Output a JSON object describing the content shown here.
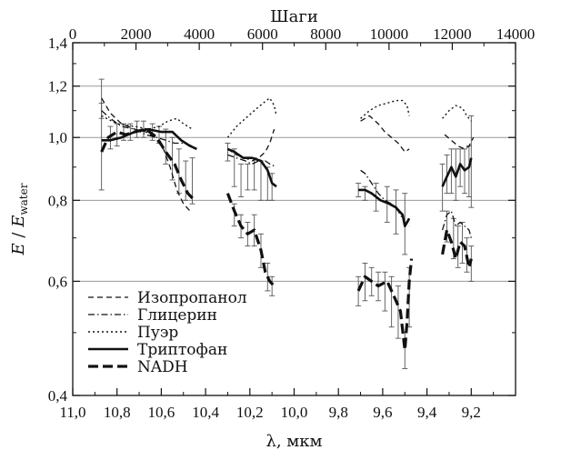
{
  "chart_data": {
    "type": "line",
    "title": "",
    "top_axis": {
      "label": "Шаги",
      "ticks": [
        0,
        2000,
        4000,
        6000,
        8000,
        10000,
        12000,
        14000
      ],
      "tick_labels": [
        "0",
        "2000",
        "4000",
        "6000",
        "8000",
        "10000",
        "12000",
        "14000"
      ],
      "range": [
        0,
        14000
      ]
    },
    "x_axis": {
      "label": "λ, мкм",
      "reversed": true,
      "range": [
        11.0,
        9.0
      ],
      "ticks": [
        11.0,
        10.8,
        10.6,
        10.4,
        10.2,
        10.0,
        9.8,
        9.6,
        9.4,
        9.2
      ],
      "tick_labels": [
        "11,0",
        "10,8",
        "10,6",
        "10,4",
        "10,2",
        "10,0",
        "9,8",
        "9,6",
        "9,4",
        "9,2"
      ]
    },
    "y_axis": {
      "label_main": "E",
      "label_sep": " / ",
      "label_den": "E",
      "label_sub": "water",
      "scale": "log",
      "range": [
        0.4,
        1.4
      ],
      "ticks": [
        0.4,
        0.6,
        0.8,
        1.0,
        1.2,
        1.4
      ],
      "tick_labels": [
        "0,4",
        "0,6",
        "0,8",
        "1,0",
        "1,2",
        "1,4"
      ],
      "gridlines": [
        0.6,
        0.8,
        1.0,
        1.2
      ]
    },
    "legend_position": "bottom-left",
    "series": [
      {
        "name": "Изопропанол",
        "style": "dashed",
        "segments": [
          [
            [
              10.87,
              1.15
            ],
            [
              10.83,
              1.09
            ],
            [
              10.78,
              1.05
            ],
            [
              10.72,
              1.03
            ],
            [
              10.67,
              1.02
            ],
            [
              10.63,
              1.0
            ],
            [
              10.59,
              0.96
            ],
            [
              10.56,
              0.9
            ],
            [
              10.53,
              0.83
            ],
            [
              10.5,
              0.79
            ],
            [
              10.47,
              0.77
            ]
          ],
          [
            [
              10.3,
              0.96
            ],
            [
              10.26,
              0.94
            ],
            [
              10.22,
              0.93
            ],
            [
              10.19,
              0.92
            ],
            [
              10.16,
              0.93
            ],
            [
              10.13,
              0.95
            ],
            [
              10.11,
              0.98
            ],
            [
              10.09,
              1.03
            ]
          ],
          [
            [
              9.7,
              1.06
            ],
            [
              9.66,
              1.08
            ],
            [
              9.62,
              1.05
            ],
            [
              9.59,
              1.02
            ],
            [
              9.56,
              1.0
            ],
            [
              9.53,
              0.98
            ],
            [
              9.5,
              0.95
            ],
            [
              9.48,
              0.96
            ]
          ],
          [
            [
              9.32,
              1.01
            ],
            [
              9.29,
              0.99
            ],
            [
              9.26,
              0.97
            ],
            [
              9.23,
              0.96
            ],
            [
              9.21,
              0.97
            ],
            [
              9.19,
              1.0
            ]
          ]
        ]
      },
      {
        "name": "Глицерин",
        "style": "dashdot",
        "segments": [
          [
            [
              10.87,
              1.1
            ],
            [
              10.83,
              1.07
            ],
            [
              10.78,
              1.04
            ],
            [
              10.72,
              1.03
            ],
            [
              10.67,
              1.01
            ],
            [
              10.62,
              1.0
            ],
            [
              10.58,
              0.99
            ],
            [
              10.54,
              0.98
            ],
            [
              10.5,
              0.98
            ],
            [
              10.46,
              0.97
            ]
          ],
          [
            [
              10.3,
              0.94
            ],
            [
              10.26,
              0.93
            ],
            [
              10.22,
              0.92
            ],
            [
              10.19,
              0.91
            ],
            [
              10.16,
              0.92
            ],
            [
              10.13,
              0.92
            ],
            [
              10.11,
              0.91
            ],
            [
              10.08,
              0.9
            ]
          ],
          [
            [
              9.7,
              0.89
            ],
            [
              9.68,
              0.88
            ],
            [
              9.65,
              0.85
            ],
            [
              9.62,
              0.82
            ],
            [
              9.59,
              0.8
            ],
            [
              9.56,
              0.79
            ],
            [
              9.53,
              0.77
            ],
            [
              9.5,
              0.74
            ],
            [
              9.48,
              0.73
            ]
          ],
          [
            [
              9.33,
              0.72
            ],
            [
              9.31,
              0.76
            ],
            [
              9.29,
              0.77
            ],
            [
              9.27,
              0.73
            ],
            [
              9.25,
              0.74
            ],
            [
              9.23,
              0.73
            ],
            [
              9.21,
              0.72
            ],
            [
              9.2,
              0.7
            ]
          ]
        ]
      },
      {
        "name": "Пуэр",
        "style": "dotted",
        "segments": [
          [
            [
              10.87,
              1.08
            ],
            [
              10.8,
              1.05
            ],
            [
              10.72,
              1.04
            ],
            [
              10.66,
              1.03
            ],
            [
              10.61,
              1.04
            ],
            [
              10.57,
              1.06
            ],
            [
              10.53,
              1.07
            ],
            [
              10.5,
              1.05
            ],
            [
              10.46,
              1.03
            ]
          ],
          [
            [
              10.3,
              1.0
            ],
            [
              10.26,
              1.04
            ],
            [
              10.22,
              1.07
            ],
            [
              10.18,
              1.1
            ],
            [
              10.14,
              1.13
            ],
            [
              10.11,
              1.15
            ],
            [
              10.09,
              1.12
            ],
            [
              10.08,
              1.08
            ]
          ],
          [
            [
              9.7,
              1.07
            ],
            [
              9.66,
              1.1
            ],
            [
              9.62,
              1.12
            ],
            [
              9.58,
              1.13
            ],
            [
              9.54,
              1.14
            ],
            [
              9.51,
              1.14
            ],
            [
              9.49,
              1.12
            ],
            [
              9.48,
              1.08
            ]
          ],
          [
            [
              9.33,
              1.07
            ],
            [
              9.3,
              1.1
            ],
            [
              9.27,
              1.12
            ],
            [
              9.24,
              1.11
            ],
            [
              9.22,
              1.08
            ],
            [
              9.2,
              1.06
            ]
          ]
        ]
      },
      {
        "name": "Триптофан",
        "style": "solid",
        "segments": [
          [
            [
              10.87,
              0.99
            ],
            [
              10.83,
              0.99
            ],
            [
              10.78,
              1.0
            ],
            [
              10.72,
              1.02
            ],
            [
              10.66,
              1.03
            ],
            [
              10.6,
              1.02
            ],
            [
              10.55,
              1.02
            ],
            [
              10.51,
              0.99
            ],
            [
              10.47,
              0.97
            ],
            [
              10.44,
              0.96
            ]
          ],
          [
            [
              10.3,
              0.96
            ],
            [
              10.27,
              0.95
            ],
            [
              10.23,
              0.93
            ],
            [
              10.19,
              0.93
            ],
            [
              10.15,
              0.92
            ],
            [
              10.12,
              0.89
            ],
            [
              10.1,
              0.85
            ],
            [
              10.08,
              0.84
            ]
          ],
          [
            [
              9.71,
              0.83
            ],
            [
              9.68,
              0.83
            ],
            [
              9.65,
              0.82
            ],
            [
              9.61,
              0.8
            ],
            [
              9.57,
              0.79
            ],
            [
              9.54,
              0.78
            ],
            [
              9.51,
              0.76
            ],
            [
              9.5,
              0.73
            ],
            [
              9.48,
              0.75
            ]
          ],
          [
            [
              9.33,
              0.84
            ],
            [
              9.31,
              0.87
            ],
            [
              9.29,
              0.9
            ],
            [
              9.27,
              0.87
            ],
            [
              9.25,
              0.91
            ],
            [
              9.23,
              0.89
            ],
            [
              9.21,
              0.9
            ],
            [
              9.2,
              0.93
            ]
          ]
        ]
      },
      {
        "name": "NADH",
        "style": "longdash",
        "segments": [
          [
            [
              10.87,
              0.95
            ],
            [
              10.84,
              1.0
            ],
            [
              10.8,
              1.02
            ],
            [
              10.76,
              1.01
            ],
            [
              10.72,
              1.02
            ],
            [
              10.67,
              1.03
            ],
            [
              10.62,
              1.0
            ],
            [
              10.58,
              0.95
            ],
            [
              10.54,
              0.91
            ],
            [
              10.51,
              0.86
            ],
            [
              10.48,
              0.82
            ],
            [
              10.45,
              0.8
            ]
          ],
          [
            [
              10.3,
              0.82
            ],
            [
              10.27,
              0.77
            ],
            [
              10.24,
              0.73
            ],
            [
              10.21,
              0.71
            ],
            [
              10.18,
              0.72
            ],
            [
              10.15,
              0.67
            ],
            [
              10.13,
              0.62
            ],
            [
              10.11,
              0.6
            ],
            [
              10.09,
              0.59
            ]
          ],
          [
            [
              9.71,
              0.58
            ],
            [
              9.68,
              0.61
            ],
            [
              9.65,
              0.6
            ],
            [
              9.62,
              0.59
            ],
            [
              9.58,
              0.6
            ],
            [
              9.55,
              0.57
            ],
            [
              9.52,
              0.54
            ],
            [
              9.5,
              0.47
            ],
            [
              9.49,
              0.52
            ],
            [
              9.48,
              0.6
            ],
            [
              9.47,
              0.65
            ]
          ],
          [
            [
              9.33,
              0.66
            ],
            [
              9.31,
              0.72
            ],
            [
              9.29,
              0.69
            ],
            [
              9.27,
              0.65
            ],
            [
              9.25,
              0.69
            ],
            [
              9.23,
              0.68
            ],
            [
              9.21,
              0.63
            ],
            [
              9.2,
              0.65
            ]
          ]
        ]
      }
    ],
    "error_bars": [
      {
        "x": 10.87,
        "y": 1.15,
        "err": 0.08
      },
      {
        "x": 10.87,
        "y": 0.98,
        "err": 0.15
      },
      {
        "x": 10.83,
        "y": 1.0,
        "err": 0.04
      },
      {
        "x": 10.8,
        "y": 1.01,
        "err": 0.04
      },
      {
        "x": 10.77,
        "y": 1.02,
        "err": 0.03
      },
      {
        "x": 10.74,
        "y": 1.02,
        "err": 0.03
      },
      {
        "x": 10.71,
        "y": 1.03,
        "err": 0.03
      },
      {
        "x": 10.68,
        "y": 1.03,
        "err": 0.03
      },
      {
        "x": 10.64,
        "y": 1.02,
        "err": 0.03
      },
      {
        "x": 10.61,
        "y": 1.01,
        "err": 0.03
      },
      {
        "x": 10.58,
        "y": 0.97,
        "err": 0.06
      },
      {
        "x": 10.55,
        "y": 0.93,
        "err": 0.07
      },
      {
        "x": 10.52,
        "y": 0.89,
        "err": 0.07
      },
      {
        "x": 10.49,
        "y": 0.86,
        "err": 0.06
      },
      {
        "x": 10.46,
        "y": 0.86,
        "err": 0.07
      },
      {
        "x": 10.3,
        "y": 0.95,
        "err": 0.03
      },
      {
        "x": 10.27,
        "y": 0.9,
        "err": 0.06
      },
      {
        "x": 10.24,
        "y": 0.86,
        "err": 0.05
      },
      {
        "x": 10.21,
        "y": 0.87,
        "err": 0.04
      },
      {
        "x": 10.18,
        "y": 0.88,
        "err": 0.05
      },
      {
        "x": 10.15,
        "y": 0.86,
        "err": 0.06
      },
      {
        "x": 10.12,
        "y": 0.85,
        "err": 0.05
      },
      {
        "x": 10.1,
        "y": 0.84,
        "err": 0.04
      },
      {
        "x": 10.27,
        "y": 0.76,
        "err": 0.03
      },
      {
        "x": 10.24,
        "y": 0.73,
        "err": 0.03
      },
      {
        "x": 10.21,
        "y": 0.71,
        "err": 0.03
      },
      {
        "x": 10.18,
        "y": 0.72,
        "err": 0.04
      },
      {
        "x": 10.15,
        "y": 0.67,
        "err": 0.04
      },
      {
        "x": 10.12,
        "y": 0.61,
        "err": 0.03
      },
      {
        "x": 10.1,
        "y": 0.59,
        "err": 0.02
      },
      {
        "x": 9.71,
        "y": 0.58,
        "err": 0.03
      },
      {
        "x": 9.68,
        "y": 0.6,
        "err": 0.04
      },
      {
        "x": 9.65,
        "y": 0.6,
        "err": 0.03
      },
      {
        "x": 9.62,
        "y": 0.59,
        "err": 0.03
      },
      {
        "x": 9.59,
        "y": 0.58,
        "err": 0.04
      },
      {
        "x": 9.56,
        "y": 0.56,
        "err": 0.05
      },
      {
        "x": 9.53,
        "y": 0.54,
        "err": 0.05
      },
      {
        "x": 9.5,
        "y": 0.47,
        "err": 0.03
      },
      {
        "x": 9.48,
        "y": 0.57,
        "err": 0.06
      },
      {
        "x": 9.71,
        "y": 0.83,
        "err": 0.02
      },
      {
        "x": 9.68,
        "y": 0.82,
        "err": 0.02
      },
      {
        "x": 9.63,
        "y": 0.81,
        "err": 0.04
      },
      {
        "x": 9.58,
        "y": 0.79,
        "err": 0.05
      },
      {
        "x": 9.54,
        "y": 0.77,
        "err": 0.06
      },
      {
        "x": 9.5,
        "y": 0.74,
        "err": 0.08
      },
      {
        "x": 9.33,
        "y": 0.84,
        "err": 0.07
      },
      {
        "x": 9.31,
        "y": 0.88,
        "err": 0.06
      },
      {
        "x": 9.29,
        "y": 0.89,
        "err": 0.07
      },
      {
        "x": 9.27,
        "y": 0.88,
        "err": 0.08
      },
      {
        "x": 9.25,
        "y": 0.9,
        "err": 0.06
      },
      {
        "x": 9.23,
        "y": 0.89,
        "err": 0.07
      },
      {
        "x": 9.21,
        "y": 0.89,
        "err": 0.08
      },
      {
        "x": 9.2,
        "y": 0.93,
        "err": 0.15
      },
      {
        "x": 9.31,
        "y": 0.73,
        "err": 0.04
      },
      {
        "x": 9.28,
        "y": 0.7,
        "err": 0.05
      },
      {
        "x": 9.26,
        "y": 0.68,
        "err": 0.05
      },
      {
        "x": 9.24,
        "y": 0.69,
        "err": 0.05
      },
      {
        "x": 9.22,
        "y": 0.66,
        "err": 0.04
      },
      {
        "x": 9.2,
        "y": 0.64,
        "err": 0.04
      }
    ]
  }
}
